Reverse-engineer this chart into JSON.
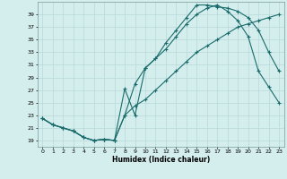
{
  "xlabel": "Humidex (Indice chaleur)",
  "bg_color": "#d4eeee",
  "grid_color": "#b8d8d8",
  "line_color": "#1a6b6b",
  "xlim": [
    -0.5,
    23.5
  ],
  "ylim": [
    18,
    41
  ],
  "yticks": [
    19,
    21,
    23,
    25,
    27,
    29,
    31,
    33,
    35,
    37,
    39
  ],
  "xticks": [
    0,
    1,
    2,
    3,
    4,
    5,
    6,
    7,
    8,
    9,
    10,
    11,
    12,
    13,
    14,
    15,
    16,
    17,
    18,
    19,
    20,
    21,
    22,
    23
  ],
  "line1_x": [
    0,
    1,
    2,
    3,
    4,
    5,
    6,
    7,
    8,
    9,
    10,
    11,
    12,
    13,
    14,
    15,
    16,
    17,
    18,
    19,
    20,
    21,
    22,
    23
  ],
  "line1_y": [
    22.5,
    21.5,
    21.0,
    20.5,
    19.5,
    19.0,
    19.2,
    19.0,
    27.2,
    23.0,
    30.5,
    32.0,
    34.5,
    36.5,
    38.5,
    40.5,
    40.5,
    40.2,
    40.0,
    39.5,
    38.5,
    36.5,
    33.0,
    30.0
  ],
  "line2_x": [
    0,
    1,
    2,
    3,
    4,
    5,
    6,
    7,
    8,
    9,
    10,
    11,
    12,
    13,
    14,
    15,
    16,
    17,
    18,
    19,
    20,
    21,
    22,
    23
  ],
  "line2_y": [
    22.5,
    21.5,
    21.0,
    20.5,
    19.5,
    19.0,
    19.2,
    19.0,
    23.0,
    28.0,
    30.5,
    32.0,
    33.5,
    35.5,
    37.5,
    39.0,
    40.0,
    40.5,
    39.5,
    38.0,
    35.5,
    30.0,
    27.5,
    25.0
  ],
  "line3_x": [
    0,
    1,
    2,
    3,
    4,
    5,
    6,
    7,
    8,
    9,
    10,
    11,
    12,
    13,
    14,
    15,
    16,
    17,
    18,
    19,
    20,
    21,
    22,
    23
  ],
  "line3_y": [
    22.5,
    21.5,
    21.0,
    20.5,
    19.5,
    19.0,
    19.2,
    19.0,
    23.0,
    24.5,
    25.5,
    27.0,
    28.5,
    30.0,
    31.5,
    33.0,
    34.0,
    35.0,
    36.0,
    37.0,
    37.5,
    38.0,
    38.5,
    39.0
  ]
}
